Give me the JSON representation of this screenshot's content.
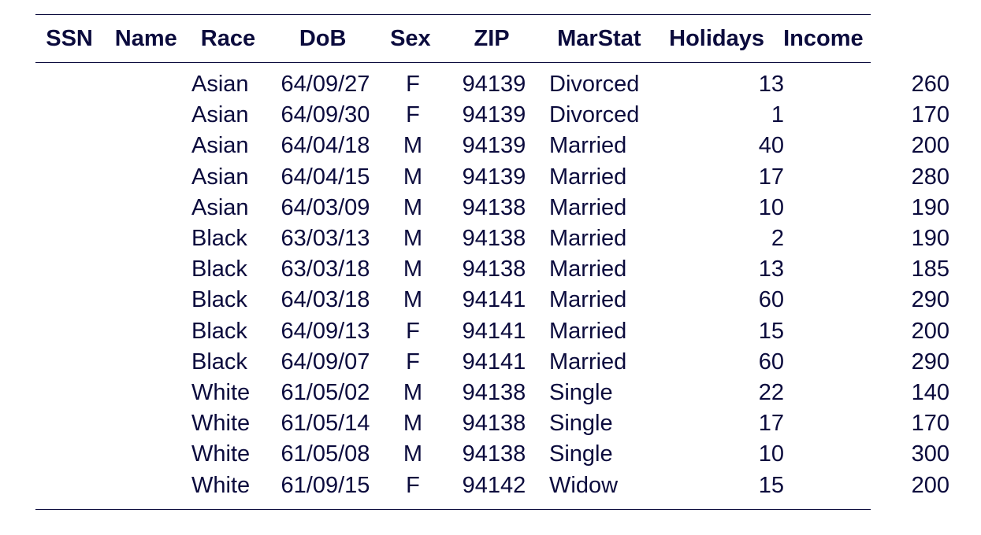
{
  "table": {
    "columns": [
      "SSN",
      "Name",
      "Race",
      "DoB",
      "Sex",
      "ZIP",
      "MarStat",
      "Holidays",
      "Income"
    ],
    "rows": [
      [
        "",
        "",
        "Asian",
        "64/09/27",
        "F",
        "94139",
        "Divorced",
        "13",
        "260"
      ],
      [
        "",
        "",
        "Asian",
        "64/09/30",
        "F",
        "94139",
        "Divorced",
        "1",
        "170"
      ],
      [
        "",
        "",
        "Asian",
        "64/04/18",
        "M",
        "94139",
        "Married",
        "40",
        "200"
      ],
      [
        "",
        "",
        "Asian",
        "64/04/15",
        "M",
        "94139",
        "Married",
        "17",
        "280"
      ],
      [
        "",
        "",
        "Asian",
        "64/03/09",
        "M",
        "94138",
        "Married",
        "10",
        "190"
      ],
      [
        "",
        "",
        "Black",
        "63/03/13",
        "M",
        "94138",
        "Married",
        "2",
        "190"
      ],
      [
        "",
        "",
        "Black",
        "63/03/18",
        "M",
        "94138",
        "Married",
        "13",
        "185"
      ],
      [
        "",
        "",
        "Black",
        "64/03/18",
        "M",
        "94141",
        "Married",
        "60",
        "290"
      ],
      [
        "",
        "",
        "Black",
        "64/09/13",
        "F",
        "94141",
        "Married",
        "15",
        "200"
      ],
      [
        "",
        "",
        "Black",
        "64/09/07",
        "F",
        "94141",
        "Married",
        "60",
        "290"
      ],
      [
        "",
        "",
        "White",
        "61/05/02",
        "M",
        "94138",
        "Single",
        "22",
        "140"
      ],
      [
        "",
        "",
        "White",
        "61/05/14",
        "M",
        "94138",
        "Single",
        "17",
        "170"
      ],
      [
        "",
        "",
        "White",
        "61/05/08",
        "M",
        "94138",
        "Single",
        "10",
        "300"
      ],
      [
        "",
        "",
        "White",
        "61/09/15",
        "F",
        "94142",
        "Widow",
        "15",
        "200"
      ]
    ]
  },
  "colors": {
    "text": "#0b0b3d",
    "background": "#ffffff"
  }
}
